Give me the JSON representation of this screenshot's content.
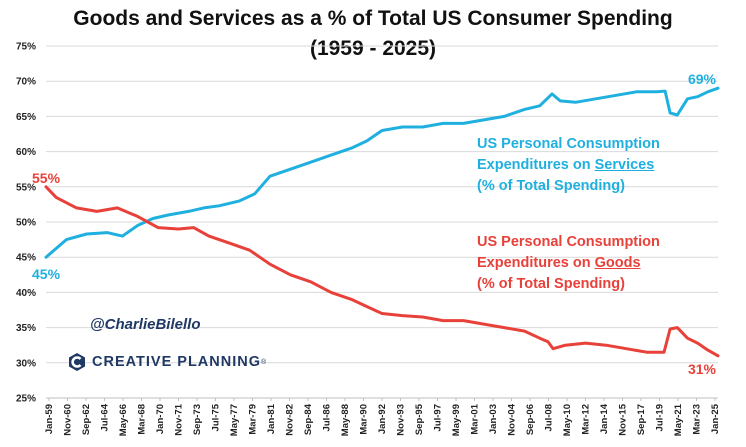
{
  "title_line1": "Goods and Services as a % of Total US Consumer Spending",
  "title_line2": "(1959 - 2025)",
  "handle": "@CharlieBilello",
  "logo_text": "CREATIVE PLANNING",
  "logo_tm": "®",
  "colors": {
    "services": "#1fb0e0",
    "goods": "#e8413a",
    "brand": "#1f3864",
    "grid": "#d9d9d9"
  },
  "annotations": {
    "services": {
      "line1": "US Personal Consumption",
      "line2_prefix": "Expenditures on ",
      "line2_emph": "Services",
      "line3": "(% of Total Spending)"
    },
    "goods": {
      "line1": "US Personal Consumption",
      "line2_prefix": "Expenditures on ",
      "line2_emph": "Goods",
      "line3": "(% of Total Spending)"
    }
  },
  "chart_data": {
    "type": "line",
    "title": "Goods and Services as a % of Total US Consumer Spending (1959 - 2025)",
    "xlabel": "",
    "ylabel": "",
    "ylim": [
      25,
      75
    ],
    "xlim": [
      1959.0,
      2025.0
    ],
    "y_ticks": [
      "25%",
      "30%",
      "35%",
      "40%",
      "45%",
      "50%",
      "55%",
      "60%",
      "65%",
      "70%",
      "75%"
    ],
    "x_tick_labels": [
      "Jan-59",
      "Nov-60",
      "Sep-62",
      "Jul-64",
      "May-66",
      "Mar-68",
      "Jan-70",
      "Nov-71",
      "Sep-73",
      "Jul-75",
      "May-77",
      "Mar-79",
      "Jan-81",
      "Nov-82",
      "Sep-84",
      "Jul-86",
      "May-88",
      "Mar-90",
      "Jan-92",
      "Nov-93",
      "Sep-95",
      "Jul-97",
      "May-99",
      "Mar-01",
      "Jan-03",
      "Nov-04",
      "Sep-06",
      "Jul-08",
      "May-10",
      "Mar-12",
      "Jan-14",
      "Nov-15",
      "Sep-17",
      "Jul-19",
      "May-21",
      "Mar-23",
      "Jan-25"
    ],
    "series": [
      {
        "name": "Services (% of Total Spending)",
        "x": [
          1959,
          1961,
          1963,
          1965,
          1966.5,
          1968,
          1969.5,
          1971,
          1973,
          1974.5,
          1976,
          1978,
          1979.5,
          1981,
          1983,
          1985,
          1987,
          1989,
          1990.5,
          1992,
          1994,
          1996,
          1998,
          2000,
          2002,
          2004,
          2006,
          2007.5,
          2008.7,
          2009.5,
          2011,
          2013,
          2015,
          2017,
          2019,
          2019.8,
          2020.3,
          2021,
          2022,
          2023,
          2024,
          2025
        ],
        "values": [
          45.0,
          47.5,
          48.3,
          48.5,
          48.0,
          49.5,
          50.5,
          51.0,
          51.5,
          52.0,
          52.3,
          53.0,
          54.0,
          56.5,
          57.5,
          58.5,
          59.5,
          60.5,
          61.5,
          63.0,
          63.5,
          63.5,
          64.0,
          64.0,
          64.5,
          65.0,
          66.0,
          66.5,
          68.2,
          67.2,
          67.0,
          67.5,
          68.0,
          68.5,
          68.5,
          68.6,
          65.5,
          65.2,
          67.5,
          67.8,
          68.5,
          69.0
        ]
      },
      {
        "name": "Goods (% of Total Spending)",
        "x": [
          1959,
          1960,
          1962,
          1964,
          1966,
          1968,
          1970,
          1972,
          1973.5,
          1975,
          1977,
          1979,
          1981,
          1983,
          1985,
          1987,
          1989,
          1990.5,
          1992,
          1994,
          1996,
          1998,
          2000,
          2002,
          2004,
          2006,
          2007.5,
          2008.3,
          2008.8,
          2010,
          2012,
          2014,
          2016,
          2018,
          2019.7,
          2020.3,
          2021,
          2022,
          2023,
          2024,
          2025
        ],
        "values": [
          55.0,
          53.5,
          52.0,
          51.5,
          52.0,
          50.8,
          49.2,
          49.0,
          49.2,
          48.0,
          47.0,
          46.0,
          44.0,
          42.5,
          41.5,
          40.0,
          39.0,
          38.0,
          37.0,
          36.7,
          36.5,
          36.0,
          36.0,
          35.5,
          35.0,
          34.5,
          33.5,
          33.0,
          32.0,
          32.5,
          32.8,
          32.5,
          32.0,
          31.5,
          31.5,
          34.8,
          35.0,
          33.5,
          32.8,
          31.8,
          31.0
        ]
      }
    ],
    "end_labels": {
      "services_start": "45%",
      "services_end": "69%",
      "goods_start": "55%",
      "goods_end": "31%"
    }
  }
}
